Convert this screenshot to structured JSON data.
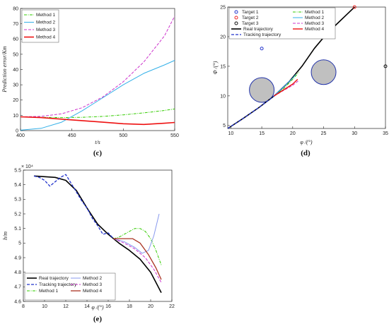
{
  "chart_data": [
    {
      "id": "c",
      "type": "line",
      "caption": "(c)",
      "xlabel": "t/s",
      "ylabel": "Prediction error/Km",
      "xlim": [
        400,
        550
      ],
      "ylim": [
        0,
        80
      ],
      "xticks": [
        "400",
        "450",
        "500",
        "550"
      ],
      "yticks": [
        "0",
        "10",
        "20",
        "30",
        "40",
        "50",
        "60",
        "70",
        "80"
      ],
      "legend_position": "top-left",
      "series": [
        {
          "name": "Method 1",
          "color": "#33cc00",
          "dash": "4,1.5,1,1.5",
          "width": 1,
          "x": [
            400,
            420,
            440,
            460,
            480,
            500,
            520,
            540,
            550
          ],
          "y": [
            9,
            8.7,
            8.5,
            8.7,
            9.3,
            10.3,
            11.6,
            13.2,
            14.2
          ]
        },
        {
          "name": "Method 2",
          "color": "#33b0e8",
          "dash": "",
          "width": 1,
          "x": [
            400,
            420,
            440,
            460,
            480,
            500,
            520,
            540,
            550
          ],
          "y": [
            0.3,
            1.5,
            5.5,
            13,
            21.5,
            30,
            37.5,
            43,
            46
          ]
        },
        {
          "name": "Method 3",
          "color": "#cc33cc",
          "dash": "4,2",
          "width": 1,
          "x": [
            400,
            420,
            440,
            460,
            480,
            500,
            520,
            540,
            550
          ],
          "y": [
            9,
            9.3,
            11,
            15,
            22,
            32,
            45,
            62,
            75
          ]
        },
        {
          "name": "Method 4",
          "color": "#ee1111",
          "dash": "",
          "width": 1.6,
          "x": [
            400,
            420,
            440,
            460,
            480,
            500,
            520,
            540,
            550
          ],
          "y": [
            9,
            8.5,
            7.5,
            6.5,
            5.5,
            4.5,
            4,
            4.8,
            5.3
          ]
        }
      ]
    },
    {
      "id": "d",
      "type": "line",
      "caption": "(d)",
      "xlabel": "φ /(°)",
      "ylabel": "Φ /(°)",
      "xlim": [
        9.5,
        35
      ],
      "ylim": [
        4.5,
        25
      ],
      "xticks": [
        "10",
        "15",
        "20",
        "25",
        "30",
        "35"
      ],
      "ytick_values": [
        5,
        10,
        15,
        20,
        25
      ],
      "yticks": [
        "5",
        "10",
        "15",
        "20",
        "25"
      ],
      "legend_position": "top",
      "targets": [
        {
          "name": "Target 1",
          "color": "#2233cc",
          "x": 15,
          "y": 18
        },
        {
          "name": "Target 2",
          "color": "#ee2222",
          "x": 30,
          "y": 25
        },
        {
          "name": "Target 3",
          "color": "#111111",
          "x": 35,
          "y": 15
        }
      ],
      "obstacles": [
        {
          "x": 15,
          "y": 11,
          "r": 2
        },
        {
          "x": 25,
          "y": 14,
          "r": 2
        }
      ],
      "series": [
        {
          "name": "Real trajectory",
          "color": "#000000",
          "dash": "",
          "width": 1.6,
          "x": [
            9.5,
            12,
            14.5,
            17,
            19.5,
            21.5,
            23.5,
            25.5,
            27.5,
            29,
            30
          ],
          "y": [
            4.5,
            6.2,
            8,
            10,
            12.5,
            15,
            18,
            20.5,
            22.5,
            24,
            25
          ]
        },
        {
          "name": "Tracking trajectory",
          "color": "#2233cc",
          "dash": "4,2",
          "width": 1.3,
          "x": [
            9.5,
            12,
            14.5,
            17,
            19.5
          ],
          "y": [
            4.5,
            6.2,
            8,
            10,
            12.5
          ]
        },
        {
          "name": "Method 1",
          "color": "#33cc00",
          "dash": "4,1.5,1,1.5",
          "width": 1,
          "x": [
            17,
            18.5,
            20,
            21
          ],
          "y": [
            10,
            11.2,
            12.8,
            14
          ]
        },
        {
          "name": "Method 2",
          "color": "#33b0e8",
          "dash": "",
          "width": 1,
          "x": [
            17,
            18.5,
            20,
            20.5
          ],
          "y": [
            10,
            11.5,
            13,
            13.6
          ]
        },
        {
          "name": "Method 3",
          "color": "#cc33cc",
          "dash": "4,2",
          "width": 1,
          "x": [
            17,
            18.5,
            20,
            21
          ],
          "y": [
            10,
            10.9,
            11.8,
            12.6
          ]
        },
        {
          "name": "Method 4",
          "color": "#ee1111",
          "dash": "",
          "width": 1.4,
          "x": [
            17,
            18.5,
            20,
            20.8
          ],
          "y": [
            10,
            11,
            12,
            12.8
          ]
        }
      ]
    },
    {
      "id": "e",
      "type": "line",
      "caption": "(e)",
      "xlabel": "φ /(°)",
      "ylabel": "h/m",
      "y_multiplier": "× 10⁴",
      "xlim": [
        8,
        22
      ],
      "ylim": [
        4.6,
        5.5
      ],
      "xticks": [
        "8",
        "10",
        "12",
        "14",
        "16",
        "18",
        "20",
        "22"
      ],
      "ytick_values": [
        4.6,
        4.7,
        4.8,
        4.9,
        5,
        5.1,
        5.2,
        5.3,
        5.4,
        5.5
      ],
      "yticks": [
        "4.6",
        "4.7",
        "4.8",
        "4.9",
        "5",
        "5.1",
        "5.2",
        "5.3",
        "5.4",
        "5.5"
      ],
      "legend_position": "bottom-left",
      "series": [
        {
          "name": "Real trajectory",
          "color": "#000000",
          "dash": "",
          "width": 1.6,
          "x": [
            9,
            10,
            11,
            12,
            13,
            14,
            15,
            16,
            17,
            18,
            19,
            20,
            20.5,
            21
          ],
          "y": [
            5.46,
            5.455,
            5.45,
            5.43,
            5.36,
            5.24,
            5.13,
            5.06,
            5.0,
            4.95,
            4.89,
            4.8,
            4.73,
            4.66
          ]
        },
        {
          "name": "Tracking trajectory",
          "color": "#2233cc",
          "dash": "4,2",
          "width": 1.3,
          "x": [
            9,
            9.5,
            10,
            10.5,
            11,
            11.5,
            12,
            12.5,
            13,
            13.5,
            14,
            14.5,
            15,
            15.5,
            16,
            16.5
          ],
          "y": [
            5.46,
            5.45,
            5.43,
            5.39,
            5.42,
            5.45,
            5.47,
            5.41,
            5.35,
            5.29,
            5.24,
            5.17,
            5.12,
            5.06,
            5.07,
            5.03
          ]
        },
        {
          "name": "Method 1",
          "color": "#33cc00",
          "dash": "4,1.5,1,1.5",
          "width": 1,
          "x": [
            16.5,
            17,
            17.5,
            18,
            18.5,
            19,
            19.5,
            20,
            20.5,
            21
          ],
          "y": [
            5.03,
            5.04,
            5.06,
            5.08,
            5.1,
            5.1,
            5.08,
            5.03,
            4.95,
            4.85
          ]
        },
        {
          "name": "Method 2",
          "color": "#8899ee",
          "dash": "",
          "width": 1,
          "x": [
            16.5,
            17.5,
            18.5,
            19.2,
            19.8,
            20.3,
            20.8
          ],
          "y": [
            5.03,
            5.01,
            4.97,
            4.93,
            4.95,
            5.05,
            5.2
          ]
        },
        {
          "name": "Method 3",
          "color": "#cc33cc",
          "dash": "4,2",
          "width": 1,
          "x": [
            16.5,
            17.5,
            18.5,
            19.5,
            20.3,
            21
          ],
          "y": [
            5.03,
            5.0,
            4.96,
            4.9,
            4.82,
            4.73
          ]
        },
        {
          "name": "Method 4",
          "color": "#aa3322",
          "dash": "",
          "width": 1.3,
          "x": [
            16.5,
            17.5,
            18.3,
            19,
            19.8,
            20.5,
            21
          ],
          "y": [
            5.03,
            5.03,
            5.03,
            5.0,
            4.92,
            4.83,
            4.75
          ]
        }
      ]
    }
  ]
}
